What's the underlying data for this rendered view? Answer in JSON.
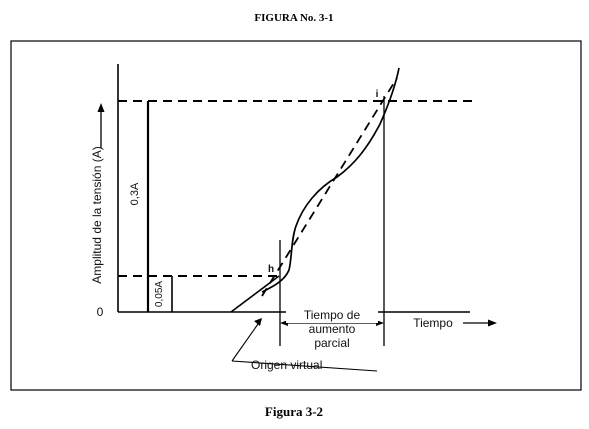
{
  "header": {
    "figure_number": "FIGURA No. 3-1"
  },
  "footer": {
    "caption": "Figura 3-2"
  },
  "diagram": {
    "y_axis_label": "Amplitud de la tensión (A)",
    "zero_label": "0",
    "x_axis_label": "Tiempo",
    "upper_level_label": "0,3A",
    "lower_level_label": "0,05A",
    "point_i_label": "i",
    "point_h_label": "h",
    "rise_time_label_lines": [
      "Tiempo de",
      "aumento",
      "parcial"
    ],
    "virtual_origin_label": "Origen virtual",
    "colors": {
      "line": "#000000",
      "frame": "#000000",
      "background": "#ffffff"
    }
  }
}
